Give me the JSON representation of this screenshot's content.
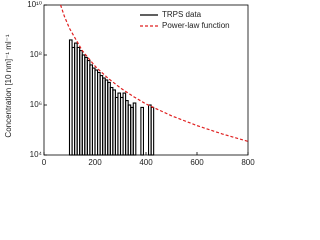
{
  "chart_data": {
    "type": "histogram",
    "y_label": "Concentration [10 nm]⁻¹ ml⁻¹",
    "xlim": [
      0,
      800
    ],
    "xticks": [
      0,
      200,
      400,
      600,
      800
    ],
    "ylim": [
      10000,
      10000000000
    ],
    "y_log": true,
    "yticks": [
      {
        "value": 10000,
        "label": "10⁴"
      },
      {
        "value": 1000000,
        "label": "10⁶"
      },
      {
        "value": 100000000,
        "label": "10⁸"
      },
      {
        "value": 10000000000,
        "label": "10¹⁰"
      }
    ],
    "bins": [
      100,
      110,
      120,
      130,
      140,
      150,
      160,
      170,
      180,
      190,
      200,
      210,
      220,
      230,
      240,
      250,
      260,
      270,
      280,
      290,
      300,
      310,
      320,
      330,
      340,
      350,
      360,
      370,
      380,
      390,
      400,
      410,
      420,
      430
    ],
    "series": [
      {
        "name": "TRPS data",
        "color": "#000000",
        "values": [
          400000000,
          200000000,
          300000000,
          200000000,
          150000000,
          100000000,
          80000000,
          60000000,
          40000000,
          30000000,
          25000000,
          20000000,
          15000000,
          12000000,
          10000000,
          8000000,
          5000000,
          4000000,
          2000000,
          3000000,
          2000000,
          3000000,
          1500000,
          1000000,
          800000,
          1200000,
          0,
          0,
          800000,
          0,
          0,
          1000000,
          800000
        ]
      },
      {
        "name": "Power-law function",
        "color": "#e02020",
        "dashed": true,
        "x": [
          65,
          80,
          100,
          150,
          200,
          250,
          300,
          350,
          400,
          500,
          600,
          700,
          800
        ],
        "values": [
          10000000000,
          3500000000,
          1160000000,
          150000000,
          36000000,
          12000000,
          4800000,
          2200000,
          1100000,
          370000,
          150000,
          69000,
          35000
        ]
      }
    ],
    "legend": "upper-right"
  }
}
